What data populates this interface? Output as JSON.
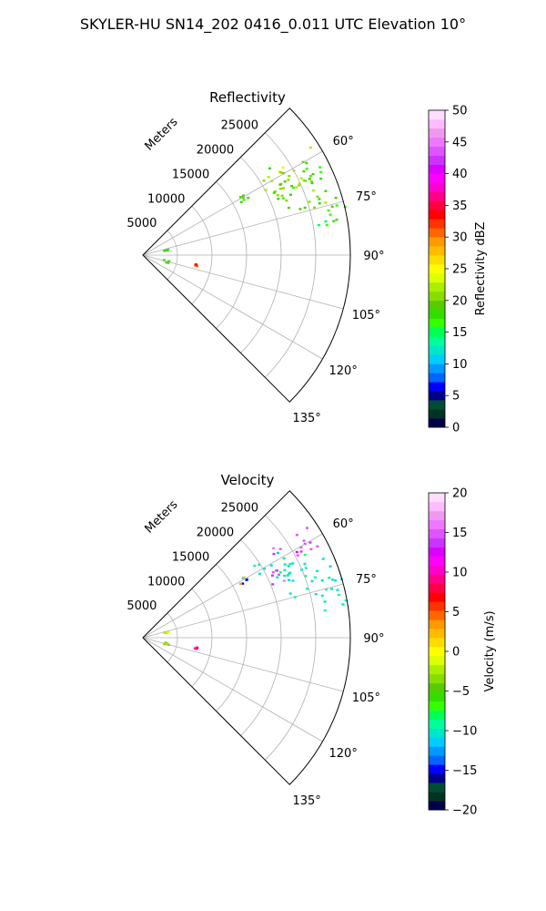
{
  "figure": {
    "suptitle": "SKYLER-HU  SN14_202  0416_0.011 UTC Elevation 10°"
  },
  "chart_data": [
    {
      "type": "polar-sector-scan",
      "title": "Reflectivity",
      "range_axis_label": "Meters",
      "range_ticks": [
        5000,
        10000,
        15000,
        20000,
        25000
      ],
      "range_tick_labels": [
        "5000",
        "10000",
        "15000",
        "20000",
        "25000"
      ],
      "rmax": 30000,
      "azimuth_range_deg": [
        45,
        135
      ],
      "azimuth_ticks": [
        60,
        75,
        90,
        105,
        120,
        135
      ],
      "azimuth_tick_labels": [
        "60°",
        "75°",
        "90°",
        "105°",
        "120°",
        "135°"
      ],
      "grid": true,
      "colorbar": {
        "label": "Reflectivity dBZ",
        "vmin": 0,
        "vmax": 50,
        "ticks": [
          0,
          5,
          10,
          15,
          20,
          25,
          30,
          35,
          40,
          45,
          50
        ],
        "tick_labels": [
          "0",
          "5",
          "10",
          "15",
          "20",
          "25",
          "30",
          "35",
          "40",
          "45",
          "50"
        ],
        "colors": [
          "#00004c",
          "#003322",
          "#004d33",
          "#00008b",
          "#0000ff",
          "#0066ff",
          "#0099ff",
          "#00ccff",
          "#00e5cc",
          "#00ff99",
          "#00ff55",
          "#33ff00",
          "#33dd00",
          "#55cc00",
          "#88dd00",
          "#aaee00",
          "#ddff00",
          "#ffff00",
          "#ffdd00",
          "#ffbb00",
          "#ff9900",
          "#ff6600",
          "#ff3300",
          "#ff0000",
          "#ff0044",
          "#ff0088",
          "#ff00cc",
          "#ff00ff",
          "#dd00ff",
          "#cc33ff",
          "#dd55ff",
          "#ee77ff",
          "#ee99ee",
          "#ffbbff",
          "#ffddff"
        ]
      },
      "echo_clusters": [
        {
          "az": [
            55,
            66
          ],
          "range_m": [
            19000,
            30000
          ],
          "dbz": [
            16,
            24
          ]
        },
        {
          "az": [
            62,
            76
          ],
          "range_m": [
            21000,
            29000
          ],
          "dbz": [
            16,
            22
          ]
        },
        {
          "az": [
            73,
            82
          ],
          "range_m": [
            25500,
            30000
          ],
          "dbz": [
            15,
            19
          ]
        },
        {
          "az": [
            57,
            61
          ],
          "range_m": [
            16000,
            18000
          ],
          "dbz": [
            16,
            20
          ]
        },
        {
          "az": [
            73,
            76
          ],
          "range_m": [
            3000,
            3600
          ],
          "dbz": [
            16,
            19
          ]
        },
        {
          "az": [
            100,
            106
          ],
          "range_m": [
            2800,
            3800
          ],
          "dbz": [
            17,
            20
          ]
        },
        {
          "az": [
            99,
            101
          ],
          "range_m": [
            7500,
            7800
          ],
          "dbz": [
            30,
            34
          ]
        }
      ]
    },
    {
      "type": "polar-sector-scan",
      "title": "Velocity",
      "range_axis_label": "Meters",
      "range_ticks": [
        5000,
        10000,
        15000,
        20000,
        25000
      ],
      "range_tick_labels": [
        "5000",
        "10000",
        "15000",
        "20000",
        "25000"
      ],
      "rmax": 30000,
      "azimuth_range_deg": [
        45,
        135
      ],
      "azimuth_ticks": [
        60,
        75,
        90,
        105,
        120,
        135
      ],
      "azimuth_tick_labels": [
        "60°",
        "75°",
        "90°",
        "105°",
        "120°",
        "135°"
      ],
      "grid": true,
      "colorbar": {
        "label": "Velocity (m/s)",
        "vmin": -20,
        "vmax": 20,
        "ticks": [
          -20,
          -15,
          -10,
          -5,
          0,
          5,
          10,
          15,
          20
        ],
        "tick_labels": [
          "−20",
          "−15",
          "−10",
          "−5",
          "0",
          "5",
          "10",
          "15",
          "20"
        ],
        "colors": [
          "#00004c",
          "#003322",
          "#004d33",
          "#00008b",
          "#0000ff",
          "#0066ff",
          "#0099ff",
          "#00ccff",
          "#00e5cc",
          "#00ff99",
          "#00ff55",
          "#33ff00",
          "#33dd00",
          "#55cc00",
          "#88dd00",
          "#aaee00",
          "#ddff00",
          "#ffff00",
          "#ffdd00",
          "#ffbb00",
          "#ff9900",
          "#ff6600",
          "#ff3300",
          "#ff0000",
          "#ff0044",
          "#ff0088",
          "#ff00cc",
          "#ff00ff",
          "#dd00ff",
          "#cc33ff",
          "#dd55ff",
          "#ee77ff",
          "#ee99ee",
          "#ffbbff",
          "#ffddff"
        ]
      },
      "echo_clusters": [
        {
          "az": [
            55,
            62
          ],
          "range_m": [
            22000,
            30000
          ],
          "vel": [
            13,
            16
          ]
        },
        {
          "az": [
            56,
            66
          ],
          "range_m": [
            19000,
            24000
          ],
          "vel": [
            -12,
            -9
          ]
        },
        {
          "az": [
            62,
            76
          ],
          "range_m": [
            22000,
            29500
          ],
          "vel": [
            -11,
            -9
          ]
        },
        {
          "az": [
            62,
            68
          ],
          "range_m": [
            19500,
            22000
          ],
          "vel": [
            13,
            16
          ]
        },
        {
          "az": [
            73,
            82
          ],
          "range_m": [
            25500,
            30000
          ],
          "vel": [
            -11,
            -9
          ]
        },
        {
          "az": [
            57,
            61
          ],
          "range_m": [
            16000,
            18000
          ],
          "vel": [
            -15,
            16
          ]
        },
        {
          "az": [
            73,
            76
          ],
          "range_m": [
            3000,
            3600
          ],
          "vel": [
            -3,
            -1
          ]
        },
        {
          "az": [
            100,
            106
          ],
          "range_m": [
            2800,
            3800
          ],
          "vel": [
            -4,
            -1
          ]
        },
        {
          "az": [
            99,
            101
          ],
          "range_m": [
            7500,
            7800
          ],
          "vel": [
            8,
            10
          ]
        }
      ]
    }
  ]
}
